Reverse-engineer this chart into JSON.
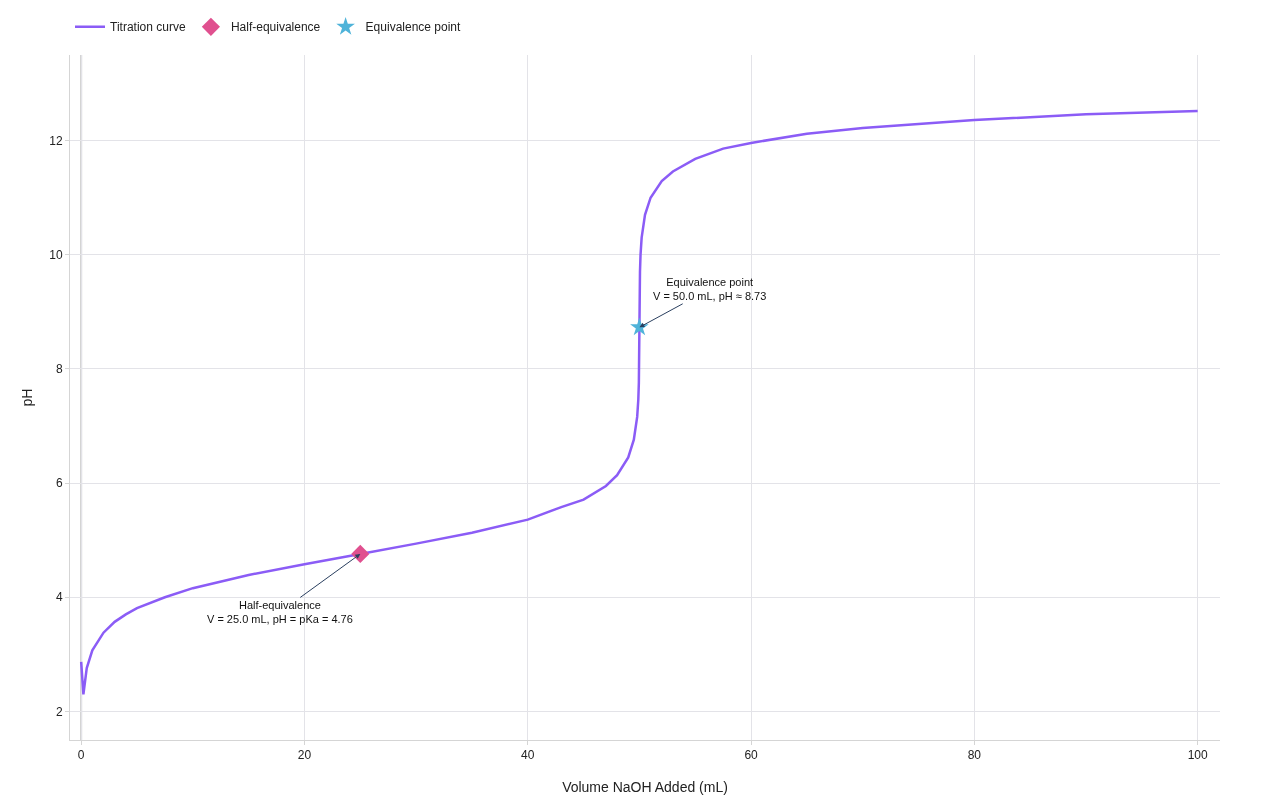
{
  "chart_data": {
    "type": "line",
    "xlabel": "Volume NaOH Added (mL)",
    "ylabel": "pH",
    "xlim": [
      -1,
      102
    ],
    "ylim": [
      1.5,
      13.5
    ],
    "xticks": [
      0,
      20,
      40,
      60,
      80,
      100
    ],
    "yticks": [
      2,
      4,
      6,
      8,
      10,
      12
    ],
    "grid": true,
    "legend": "top left",
    "series": [
      {
        "name": "Titration curve",
        "color": "#8b5cf6",
        "marker": "none",
        "line_style": "solid",
        "x": [
          0,
          0.2,
          0.5,
          1,
          2,
          3,
          4,
          5,
          7.5,
          10,
          15,
          20,
          25,
          30,
          35,
          40,
          43,
          45,
          47,
          48,
          49,
          49.5,
          49.8,
          49.9,
          49.95,
          50.05,
          50.1,
          50.2,
          50.5,
          51,
          52,
          53,
          55,
          57.5,
          60,
          65,
          70,
          80,
          90,
          100
        ],
        "values": [
          2.87,
          2.3,
          2.76,
          3.07,
          3.38,
          3.57,
          3.7,
          3.81,
          4.0,
          4.16,
          4.39,
          4.58,
          4.76,
          4.94,
          5.13,
          5.36,
          5.58,
          5.71,
          5.95,
          6.14,
          6.45,
          6.76,
          7.16,
          7.46,
          7.76,
          9.7,
          10.0,
          10.3,
          10.7,
          11.0,
          11.29,
          11.46,
          11.68,
          11.86,
          11.96,
          12.12,
          12.22,
          12.36,
          12.46,
          12.52
        ]
      },
      {
        "name": "Half-equivalence",
        "type": "scatter",
        "color": "#e0508f",
        "marker": "diamond",
        "x": [
          25
        ],
        "values": [
          4.76
        ]
      },
      {
        "name": "Equivalence point",
        "type": "scatter",
        "color": "#4fb3d9",
        "marker": "star",
        "x": [
          50
        ],
        "values": [
          8.73
        ]
      }
    ],
    "annotations": [
      {
        "text": "Half-equivalence\nV = 25.0 mL, pH = pKa = 4.76",
        "x": 25,
        "y": 4.76
      },
      {
        "text": "Equivalence point\nV = 50.0 mL, pH ≈ 8.73",
        "x": 50,
        "y": 8.73
      }
    ],
    "ref_lines": [
      {
        "axis": "x",
        "value": 0,
        "label": null,
        "color": "#cccccc"
      }
    ]
  }
}
